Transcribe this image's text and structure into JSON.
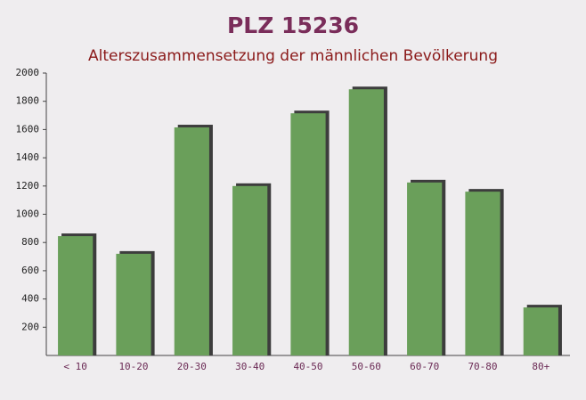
{
  "chart_data": {
    "type": "bar",
    "title": "PLZ 15236",
    "subtitle": "Alterszusammensetzung der männlichen Bevölkerung",
    "categories": [
      "< 10",
      "10-20",
      "20-30",
      "30-40",
      "40-50",
      "50-60",
      "60-70",
      "70-80",
      "80+"
    ],
    "values": [
      845,
      720,
      1615,
      1200,
      1715,
      1885,
      1225,
      1160,
      340
    ],
    "color": "#6a9f5a",
    "ylim": [
      0,
      2000
    ],
    "yticks": [
      200,
      400,
      600,
      800,
      1000,
      1200,
      1400,
      1600,
      1800,
      2000
    ]
  }
}
